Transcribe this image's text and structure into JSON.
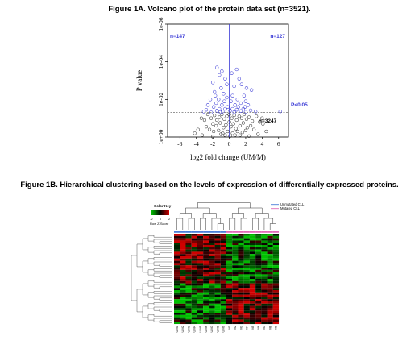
{
  "figure_1a_title": "Figure 1A. Volcano plot of the protein data set (n=3521).",
  "figure_1b_title": "Figure 1B. Hierarchical clustering based on the levels of expression of differentially expressed proteins.",
  "chart_data": [
    {
      "type": "scatter",
      "title": "Figure 1A. Volcano plot of the protein data set (n=3521).",
      "xlabel": "log2 fold change (UM/M)",
      "ylabel": "P value",
      "xlim": [
        -7.5,
        7.2
      ],
      "ylim": [
        0,
        6
      ],
      "y_scale": "log-reciprocal",
      "x_ticks": [
        "-6",
        "-4",
        "-2",
        "0",
        "2",
        "4",
        "6"
      ],
      "y_ticks": [
        "1e+00",
        "1e-02",
        "1e-04",
        "1e-06"
      ],
      "threshold_label": "P<0.05",
      "threshold_neg_log10_p": 1.3,
      "annotations": {
        "up_left": "n=147",
        "up_right": "n=127",
        "not_significant": "n=3247"
      },
      "colors": {
        "significant": "#3a3ad6",
        "not_significant": "#222222",
        "threshold_line": "#555555",
        "vline": "#3a3ad6"
      },
      "series": [
        {
          "name": "significant",
          "points": [
            [
              -1.5,
              3.7
            ],
            [
              -0.9,
              3.5
            ],
            [
              -1.2,
              3.3
            ],
            [
              -0.5,
              3.1
            ],
            [
              -2.0,
              2.9
            ],
            [
              -0.3,
              2.8
            ],
            [
              0.3,
              3.4
            ],
            [
              0.9,
              3.6
            ],
            [
              1.2,
              3.1
            ],
            [
              1.5,
              2.8
            ],
            [
              0.6,
              2.7
            ],
            [
              2.1,
              2.6
            ],
            [
              2.7,
              2.5
            ],
            [
              -1.0,
              2.6
            ],
            [
              -1.8,
              2.4
            ],
            [
              -0.7,
              2.3
            ],
            [
              1.8,
              2.2
            ],
            [
              0.4,
              2.2
            ],
            [
              -0.3,
              2.1
            ],
            [
              -1.3,
              2.0
            ],
            [
              -2.3,
              2.0
            ],
            [
              2.0,
              1.9
            ],
            [
              1.0,
              2.0
            ],
            [
              -0.6,
              1.9
            ],
            [
              0.2,
              1.9
            ],
            [
              -1.6,
              1.8
            ],
            [
              1.4,
              1.8
            ],
            [
              -2.6,
              1.7
            ],
            [
              -0.9,
              1.7
            ],
            [
              0.7,
              1.7
            ],
            [
              2.3,
              1.7
            ],
            [
              -1.9,
              1.6
            ],
            [
              -0.2,
              1.6
            ],
            [
              1.1,
              1.6
            ],
            [
              0.4,
              1.5
            ],
            [
              -1.2,
              1.5
            ],
            [
              1.7,
              1.5
            ],
            [
              -0.5,
              1.5
            ],
            [
              -2.8,
              1.45
            ],
            [
              0.9,
              1.45
            ],
            [
              2.6,
              1.42
            ],
            [
              -1.5,
              1.4
            ],
            [
              0.1,
              1.4
            ],
            [
              1.4,
              1.38
            ],
            [
              -0.8,
              1.36
            ],
            [
              3.2,
              1.35
            ],
            [
              -3.1,
              1.35
            ],
            [
              6.2,
              1.36
            ],
            [
              2.0,
              1.34
            ],
            [
              -1.1,
              1.33
            ],
            [
              0.6,
              1.32
            ],
            [
              -2.2,
              1.31
            ],
            [
              1.9,
              1.6
            ],
            [
              -1.7,
              2.2
            ]
          ]
        },
        {
          "name": "not_significant",
          "points": [
            [
              -2.6,
              1.2
            ],
            [
              -2.2,
              1.0
            ],
            [
              -1.8,
              1.15
            ],
            [
              -1.5,
              0.9
            ],
            [
              -1.2,
              1.05
            ],
            [
              -0.9,
              1.2
            ],
            [
              -0.6,
              0.95
            ],
            [
              -0.3,
              1.1
            ],
            [
              0.0,
              1.2
            ],
            [
              0.3,
              1.0
            ],
            [
              0.6,
              1.15
            ],
            [
              0.9,
              0.9
            ],
            [
              1.2,
              1.1
            ],
            [
              1.5,
              1.0
            ],
            [
              1.8,
              1.2
            ],
            [
              2.1,
              0.95
            ],
            [
              2.4,
              1.05
            ],
            [
              2.8,
              0.85
            ],
            [
              3.3,
              1.1
            ],
            [
              3.7,
              0.8
            ],
            [
              -3.0,
              0.9
            ],
            [
              -3.4,
              1.0
            ],
            [
              -2.0,
              0.7
            ],
            [
              -1.6,
              0.6
            ],
            [
              -1.1,
              0.75
            ],
            [
              -0.7,
              0.5
            ],
            [
              -0.4,
              0.65
            ],
            [
              0.2,
              0.55
            ],
            [
              0.5,
              0.7
            ],
            [
              0.8,
              0.45
            ],
            [
              1.3,
              0.6
            ],
            [
              1.7,
              0.75
            ],
            [
              2.2,
              0.5
            ],
            [
              2.6,
              0.6
            ],
            [
              -2.4,
              0.4
            ],
            [
              -1.9,
              0.3
            ],
            [
              -1.3,
              0.35
            ],
            [
              -0.8,
              0.2
            ],
            [
              -0.2,
              0.3
            ],
            [
              0.4,
              0.2
            ],
            [
              1.0,
              0.3
            ],
            [
              1.6,
              0.25
            ],
            [
              2.0,
              0.35
            ],
            [
              -0.5,
              0.1
            ],
            [
              0.1,
              0.05
            ],
            [
              0.7,
              0.1
            ],
            [
              -1.0,
              0.15
            ],
            [
              1.3,
              0.1
            ],
            [
              3.0,
              0.4
            ],
            [
              -2.8,
              0.55
            ],
            [
              4.1,
              0.7
            ],
            [
              4.5,
              0.3
            ],
            [
              -3.8,
              0.4
            ],
            [
              -4.2,
              0.2
            ],
            [
              3.5,
              0.15
            ],
            [
              -3.3,
              0.1
            ],
            [
              2.4,
              0.05
            ],
            [
              -2.0,
              0.02
            ],
            [
              4.0,
              1.0
            ],
            [
              0.0,
              0.8
            ]
          ]
        }
      ]
    },
    {
      "type": "heatmap",
      "title": "Figure 1B. Hierarchical clustering based on the levels of expression of differentially expressed proteins.",
      "color_key_title": "Color Key",
      "color_key_label": "Row Z-Score",
      "color_key_ticks": [
        "-2",
        "0",
        "2"
      ],
      "legend": [
        {
          "label": "Unmutated CLL",
          "color": "#4a7fd8"
        },
        {
          "label": "Mutated CLL",
          "color": "#e06ab8"
        }
      ],
      "columns": [
        {
          "label": "UM1",
          "group": "Unmutated CLL"
        },
        {
          "label": "UM2",
          "group": "Unmutated CLL"
        },
        {
          "label": "UM3",
          "group": "Unmutated CLL"
        },
        {
          "label": "UM4",
          "group": "Unmutated CLL"
        },
        {
          "label": "UM5",
          "group": "Unmutated CLL"
        },
        {
          "label": "UM6",
          "group": "Unmutated CLL"
        },
        {
          "label": "UM7",
          "group": "Unmutated CLL"
        },
        {
          "label": "UM8",
          "group": "Unmutated CLL"
        },
        {
          "label": "UM9",
          "group": "Unmutated CLL"
        },
        {
          "label": "M1",
          "group": "Mutated CLL"
        },
        {
          "label": "M2",
          "group": "Mutated CLL"
        },
        {
          "label": "M3",
          "group": "Mutated CLL"
        },
        {
          "label": "M4",
          "group": "Mutated CLL"
        },
        {
          "label": "M5",
          "group": "Mutated CLL"
        },
        {
          "label": "M6",
          "group": "Mutated CLL"
        },
        {
          "label": "M7",
          "group": "Mutated CLL"
        },
        {
          "label": "M8",
          "group": "Mutated CLL"
        },
        {
          "label": "M9",
          "group": "Mutated CLL"
        }
      ],
      "row_count": 40,
      "color_scale": [
        "#00c000",
        "#000000",
        "#d00000"
      ]
    }
  ]
}
